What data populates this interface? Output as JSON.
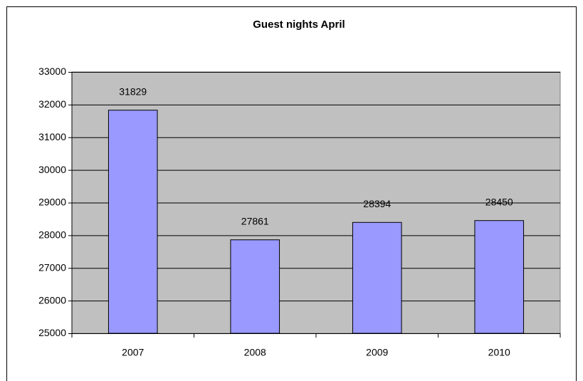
{
  "chart_data": {
    "type": "bar",
    "title": "Guest nights April",
    "categories": [
      "2007",
      "2008",
      "2009",
      "2010"
    ],
    "values": [
      31829,
      27861,
      28394,
      28450
    ],
    "color": "#9999ff",
    "plot_background": "#c0c0c0",
    "ylim": [
      25000,
      33000
    ],
    "yticks": [
      25000,
      26000,
      27000,
      28000,
      29000,
      30000,
      31000,
      32000,
      33000
    ],
    "grid": true
  }
}
